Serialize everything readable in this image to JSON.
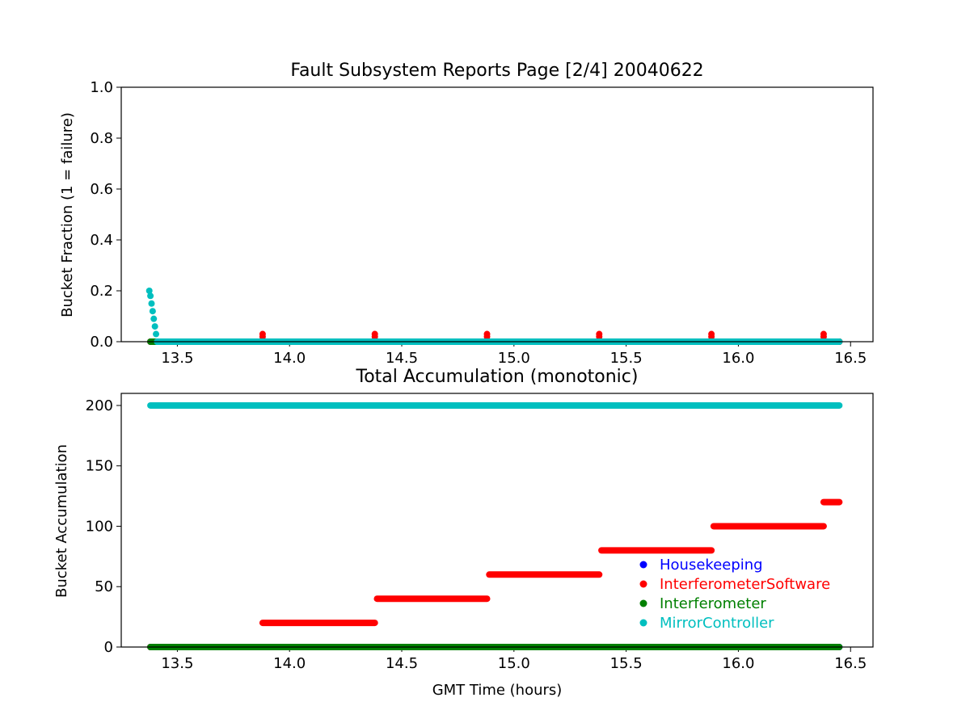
{
  "chart_data": [
    {
      "type": "scatter",
      "title": "Fault Subsystem Reports Page [2/4] 20040622",
      "xlabel": "",
      "ylabel": "Bucket Fraction (1 = failure)",
      "xlim": [
        13.25,
        16.6
      ],
      "ylim": [
        0.0,
        1.0
      ],
      "xticks": [
        "13.5",
        "14.0",
        "14.5",
        "15.0",
        "15.5",
        "16.0",
        "16.5"
      ],
      "yticks": [
        "0.0",
        "0.2",
        "0.4",
        "0.6",
        "0.8",
        "1.0"
      ],
      "series": [
        {
          "name": "Housekeeping",
          "color": "#0000ff",
          "segments": [
            [
              13.38,
              16.45,
              0.0
            ]
          ],
          "points": []
        },
        {
          "name": "InterferometerSoftware",
          "color": "#ff0000",
          "segments": [
            [
              13.38,
              16.45,
              0.0
            ]
          ],
          "points": [
            [
              13.88,
              0.02
            ],
            [
              13.88,
              0.03
            ],
            [
              14.38,
              0.02
            ],
            [
              14.38,
              0.03
            ],
            [
              14.88,
              0.02
            ],
            [
              14.88,
              0.03
            ],
            [
              15.38,
              0.02
            ],
            [
              15.38,
              0.03
            ],
            [
              15.88,
              0.02
            ],
            [
              15.88,
              0.03
            ],
            [
              16.38,
              0.02
            ],
            [
              16.38,
              0.03
            ]
          ]
        },
        {
          "name": "Interferometer",
          "color": "#008000",
          "segments": [
            [
              13.38,
              16.45,
              0.0
            ]
          ],
          "points": []
        },
        {
          "name": "MirrorController",
          "color": "#00bfbf",
          "segments": [
            [
              13.41,
              16.45,
              0.0
            ]
          ],
          "points": [
            [
              13.375,
              0.2
            ],
            [
              13.38,
              0.18
            ],
            [
              13.385,
              0.15
            ],
            [
              13.39,
              0.12
            ],
            [
              13.395,
              0.09
            ],
            [
              13.4,
              0.06
            ],
            [
              13.405,
              0.03
            ],
            [
              13.41,
              0.0
            ]
          ]
        }
      ]
    },
    {
      "type": "scatter",
      "title": "Total Accumulation (monotonic)",
      "xlabel": "GMT Time (hours)",
      "ylabel": "Bucket Accumulation",
      "xlim": [
        13.25,
        16.6
      ],
      "ylim": [
        0,
        210
      ],
      "xticks": [
        "13.5",
        "14.0",
        "14.5",
        "15.0",
        "15.5",
        "16.0",
        "16.5"
      ],
      "yticks": [
        "0",
        "50",
        "100",
        "150",
        "200"
      ],
      "legend": "lower-right",
      "series": [
        {
          "name": "Housekeeping",
          "color": "#0000ff",
          "segments": [
            [
              13.38,
              16.45,
              0
            ]
          ]
        },
        {
          "name": "InterferometerSoftware",
          "color": "#ff0000",
          "segments": [
            [
              13.38,
              13.88,
              0
            ],
            [
              13.88,
              14.38,
              20
            ],
            [
              14.39,
              14.88,
              40
            ],
            [
              14.89,
              15.38,
              60
            ],
            [
              15.39,
              15.88,
              80
            ],
            [
              15.89,
              16.38,
              100
            ],
            [
              16.38,
              16.45,
              120
            ]
          ]
        },
        {
          "name": "Interferometer",
          "color": "#008000",
          "segments": [
            [
              13.38,
              16.45,
              0
            ]
          ]
        },
        {
          "name": "MirrorController",
          "color": "#00bfbf",
          "segments": [
            [
              13.38,
              16.45,
              200
            ]
          ]
        }
      ]
    }
  ]
}
